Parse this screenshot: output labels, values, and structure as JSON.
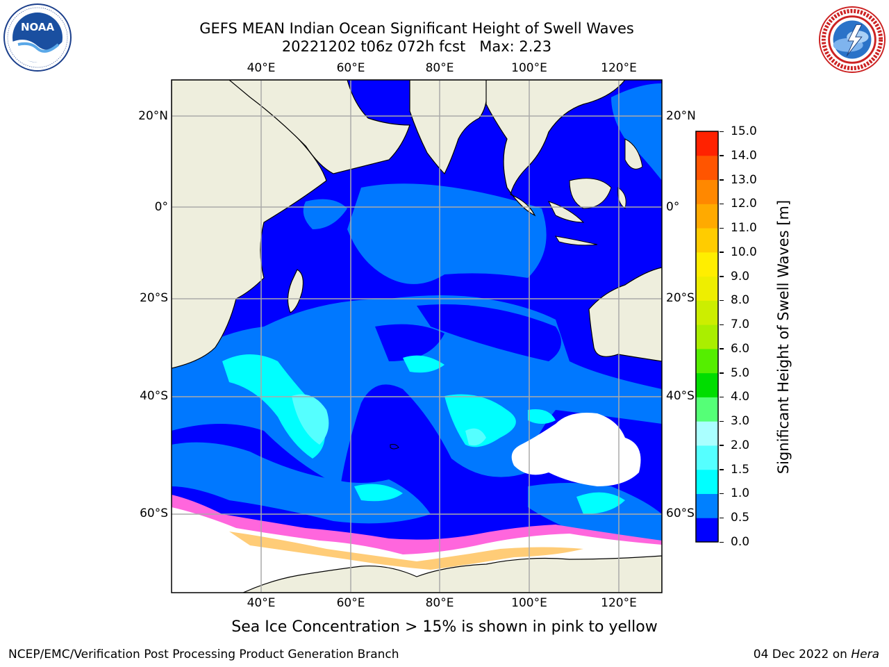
{
  "header": {
    "title_line1": "GEFS MEAN Indian Ocean Significant Height of Swell Waves",
    "title_line2": "20221202 t06z 072h fcst   Max: 2.23"
  },
  "logos": {
    "left": {
      "icon": "noaa-logo-icon",
      "text": "NOAA",
      "ring_text": "NATIONAL OCEANIC AND ATMOSPHERIC ADMINISTRATION · U.S. DEPARTMENT OF COMMERCE"
    },
    "right": {
      "icon": "nws-logo-icon",
      "ring_text": "NATIONAL WEATHER SERVICE"
    }
  },
  "map": {
    "lon_ticks_top": [
      "40°E",
      "60°E",
      "80°E",
      "100°E",
      "120°E"
    ],
    "lon_ticks_bottom": [
      "40°E",
      "60°E",
      "80°E",
      "100°E",
      "120°E"
    ],
    "lat_ticks_left": [
      "20°N",
      "0°",
      "20°S",
      "40°S",
      "60°S"
    ],
    "lat_ticks_right": [
      "20°N",
      "0°",
      "20°S",
      "40°S",
      "60°S"
    ],
    "lon_range": [
      20,
      130
    ],
    "lat_range": [
      -72,
      28
    ],
    "colors": {
      "land": "#eeeedd",
      "swell_0_05": "#0000ff",
      "swell_05_10": "#0078ff",
      "swell_10_15": "#00ffff",
      "swell_15_20": "#55ffff",
      "ice_pink": "#ff66dd",
      "ice_yellow": "#ffcc77",
      "no_data": "#ffffff",
      "grid": "#aaaaaa"
    }
  },
  "colorbar": {
    "label": "Significant Height of Swell Waves [m]",
    "ticks": [
      "0.0",
      "0.5",
      "1.0",
      "1.5",
      "2.0",
      "3.0",
      "4.0",
      "5.0",
      "6.0",
      "7.0",
      "8.0",
      "9.0",
      "10.0",
      "11.0",
      "12.0",
      "13.0",
      "14.0",
      "15.0"
    ],
    "colors": [
      "#0000ff",
      "#0080ff",
      "#00ffff",
      "#55ffff",
      "#aaffff",
      "#55ff77",
      "#00dd00",
      "#55ee00",
      "#aaee00",
      "#ccee00",
      "#eeee00",
      "#ffee00",
      "#ffcc00",
      "#ffaa00",
      "#ff8800",
      "#ff5500",
      "#ff2200"
    ]
  },
  "caption": "Sea Ice Concentration > 15% is shown in pink to yellow",
  "footer": {
    "left": "NCEP/EMC/Verification Post Processing Product Generation Branch",
    "right_prefix": "04 Dec 2022 on ",
    "right_machine": "Hera"
  }
}
